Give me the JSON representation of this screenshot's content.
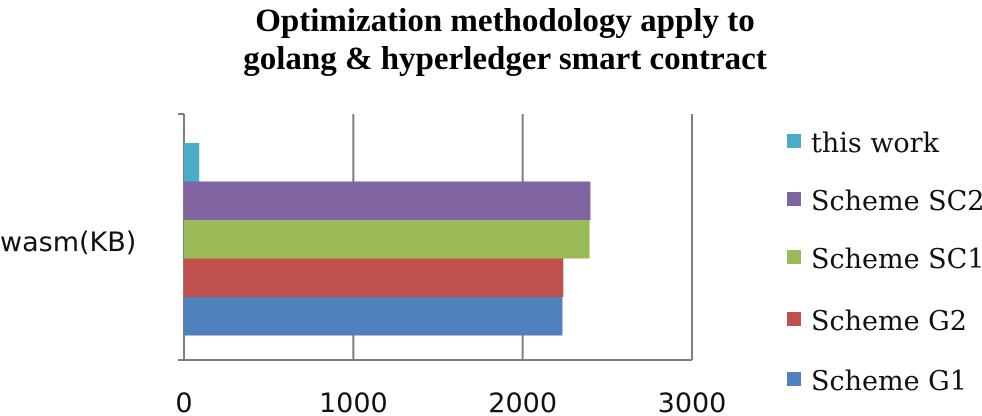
{
  "chart_data": {
    "type": "bar",
    "orientation": "horizontal",
    "title_lines": [
      "Optimization methodology apply to",
      "golang & hyperledger smart contract"
    ],
    "categories": [
      "wasm(KB)"
    ],
    "series": [
      {
        "name": "this work",
        "values": [
          90
        ],
        "color": "#4BACC6"
      },
      {
        "name": "Scheme SC2",
        "values": [
          2400
        ],
        "color": "#8064A2"
      },
      {
        "name": "Scheme SC1",
        "values": [
          2395
        ],
        "color": "#9BBB59"
      },
      {
        "name": "Scheme G2",
        "values": [
          2240
        ],
        "color": "#C0504D"
      },
      {
        "name": "Scheme G1",
        "values": [
          2235
        ],
        "color": "#4F81BD"
      }
    ],
    "xlim": [
      0,
      3000
    ],
    "xticks": [
      "0",
      "1000",
      "2000",
      "3000"
    ],
    "grid": true,
    "legend": "right"
  }
}
